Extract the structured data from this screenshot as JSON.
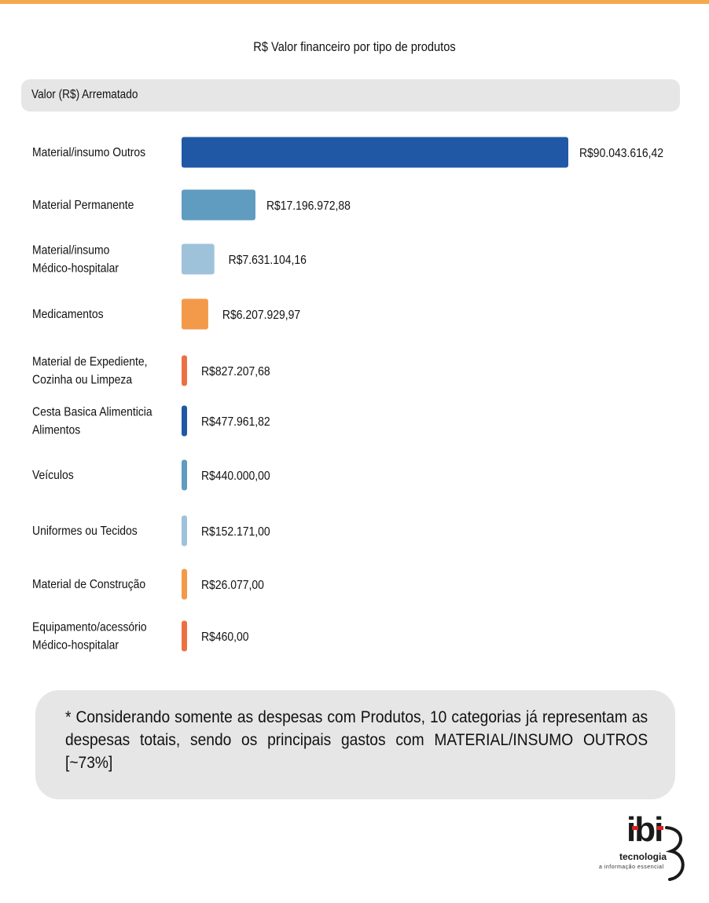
{
  "chart_data": {
    "type": "bar",
    "orientation": "horizontal",
    "title": "R$ Valor financeiro por tipo de produtos",
    "legend": "Valor (R$) Arrematado",
    "categories": [
      [
        "Material/insumo Outros"
      ],
      [
        "Material Permanente"
      ],
      [
        "Material/insumo",
        "Médico-hospitalar"
      ],
      [
        "Medicamentos"
      ],
      [
        "Material de Expediente,",
        "Cozinha ou Limpeza"
      ],
      [
        "Cesta Basica Alimenticia",
        "Alimentos"
      ],
      [
        "Veículos"
      ],
      [
        "Uniformes ou Tecidos"
      ],
      [
        "Material de Construção"
      ],
      [
        "Equipamento/acessório",
        "Médico-hospitalar"
      ]
    ],
    "values": [
      90043616.42,
      17196972.88,
      7631104.16,
      6207929.97,
      827207.68,
      477961.82,
      440000.0,
      152171.0,
      26077.0,
      460.0
    ],
    "value_labels": [
      "R$90.043.616,42",
      "R$17.196.972,88",
      "R$7.631.104,16",
      "R$6.207.929,97",
      "R$827.207,68",
      "R$477.961,82",
      "R$440.000,00",
      "R$152.171,00",
      "R$26.077,00",
      "R$460,00"
    ],
    "colors": [
      "#2058a6",
      "#609bc0",
      "#9fc2db",
      "#f39a4a",
      "#ed7043",
      "#2058a6",
      "#609bc0",
      "#9fc2db",
      "#f39a4a",
      "#ed7043"
    ]
  },
  "note": "* Considerando somente as despesas com Produtos, 10 categorias já representam as despesas totais, sendo os principais gastos com MATERIAL/INSUMO OUTROS [~73%]",
  "logo": {
    "name": "ibi",
    "tagline": "tecnologia",
    "subtitle": "a informação essencial"
  }
}
